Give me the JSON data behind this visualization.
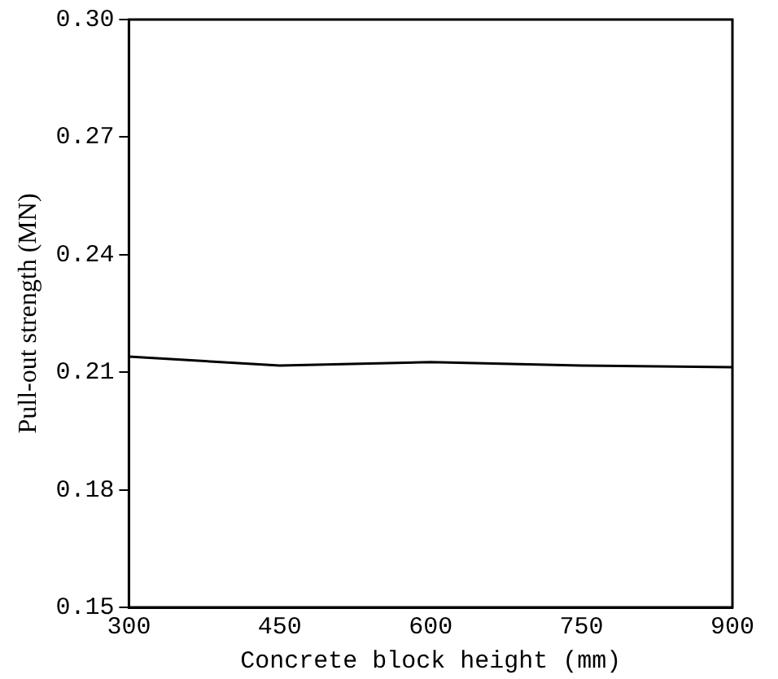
{
  "chart_data": {
    "type": "line",
    "xlabel": "Concrete block height (mm)",
    "ylabel": "Pull-out strength (MN)",
    "x": [
      300,
      450,
      600,
      750,
      900
    ],
    "series": [
      {
        "color": "#000000",
        "values": [
          0.214,
          0.2117,
          0.2126,
          0.2117,
          0.2113
        ]
      }
    ],
    "xlim": [
      300,
      900
    ],
    "xticks": [
      300,
      450,
      600,
      750,
      900
    ],
    "ylim": [
      0.15,
      0.3
    ],
    "yticks": [
      {
        "value": 0.15,
        "label": "0.15"
      },
      {
        "value": 0.18,
        "label": "0.18"
      },
      {
        "value": 0.21,
        "label": "0.21"
      },
      {
        "value": 0.24,
        "label": "0.24"
      },
      {
        "value": 0.27,
        "label": "0.27"
      },
      {
        "value": 0.3,
        "label": "0.30"
      }
    ],
    "grid": false,
    "legend": false,
    "marker": "none",
    "line_style": "solid"
  }
}
